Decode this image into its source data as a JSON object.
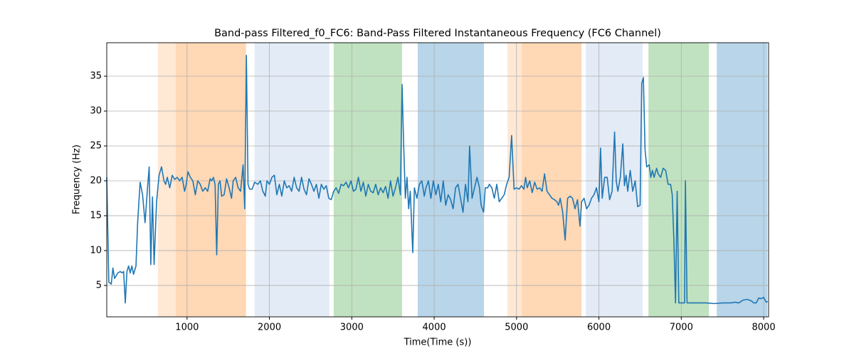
{
  "chart_data": {
    "type": "line",
    "title": "Band-pass Filtered_f0_FC6: Band-Pass Filtered Instantaneous Frequency (FC6 Channel)",
    "xlabel": "Time(Time (s))",
    "ylabel": "Frequency (Hz)",
    "color": "#1f77b4",
    "x": [
      25,
      50,
      80,
      100,
      120,
      160,
      190,
      210,
      230,
      250,
      270,
      290,
      310,
      330,
      350,
      380,
      400,
      430,
      460,
      490,
      520,
      540,
      560,
      580,
      600,
      630,
      660,
      690,
      720,
      740,
      760,
      790,
      820,
      850,
      880,
      910,
      940,
      970,
      990,
      1010,
      1040,
      1070,
      1100,
      1130,
      1160,
      1190,
      1220,
      1250,
      1280,
      1300,
      1320,
      1340,
      1360,
      1380,
      1400,
      1420,
      1450,
      1480,
      1510,
      1540,
      1560,
      1590,
      1620,
      1650,
      1680,
      1700,
      1720,
      1740,
      1760,
      1790,
      1820,
      1860,
      1890,
      1920,
      1950,
      1970,
      2000,
      2030,
      2060,
      2090,
      2120,
      2150,
      2180,
      2210,
      2240,
      2270,
      2300,
      2330,
      2360,
      2390,
      2420,
      2450,
      2480,
      2510,
      2540,
      2570,
      2600,
      2630,
      2660,
      2690,
      2720,
      2750,
      2780,
      2810,
      2840,
      2870,
      2900,
      2930,
      2960,
      2990,
      3020,
      3050,
      3080,
      3110,
      3140,
      3170,
      3200,
      3230,
      3260,
      3290,
      3320,
      3350,
      3380,
      3410,
      3440,
      3470,
      3500,
      3530,
      3560,
      3590,
      3610,
      3630,
      3650,
      3670,
      3690,
      3710,
      3740,
      3760,
      3790,
      3820,
      3850,
      3880,
      3900,
      3930,
      3960,
      3990,
      4020,
      4050,
      4080,
      4110,
      4140,
      4170,
      4200,
      4230,
      4260,
      4290,
      4320,
      4350,
      4380,
      4410,
      4430,
      4460,
      4490,
      4520,
      4550,
      4570,
      4600,
      4620,
      4650,
      4670,
      4700,
      4730,
      4760,
      4790,
      4820,
      4850,
      4880,
      4910,
      4940,
      4970,
      5000,
      5030,
      5060,
      5090,
      5110,
      5130,
      5160,
      5190,
      5220,
      5250,
      5280,
      5310,
      5340,
      5370,
      5400,
      5430,
      5460,
      5490,
      5510,
      5530,
      5560,
      5590,
      5620,
      5650,
      5680,
      5710,
      5740,
      5770,
      5790,
      5820,
      5850,
      5880,
      5910,
      5940,
      5970,
      6000,
      6020,
      6040,
      6070,
      6100,
      6130,
      6160,
      6190,
      6210,
      6230,
      6260,
      6290,
      6310,
      6330,
      6350,
      6380,
      6410,
      6440,
      6470,
      6500,
      6520,
      6540,
      6560,
      6580,
      6610,
      6630,
      6650,
      6670,
      6700,
      6720,
      6750,
      6780,
      6810,
      6840,
      6870,
      6890,
      6910,
      6930,
      6950,
      6970,
      7000,
      7040,
      7050,
      7070,
      7200,
      7300,
      7400,
      7500,
      7600,
      7650,
      7700,
      7750,
      7800,
      7850,
      7880,
      7910,
      7940,
      7970,
      8000,
      8030,
      8050
    ],
    "values": [
      20.5,
      5.5,
      5.2,
      7.5,
      6,
      6.8,
      7,
      6.8,
      7,
      2.5,
      7,
      7.8,
      6.8,
      7.8,
      6.6,
      7.8,
      14,
      19.8,
      18,
      14,
      19,
      22,
      8,
      17.7,
      8,
      17,
      20.8,
      22,
      20,
      19.5,
      20.5,
      19,
      20.8,
      20.2,
      20.5,
      20,
      20.5,
      18.5,
      19.5,
      21.3,
      20.5,
      20,
      18,
      20,
      19.5,
      18.5,
      19,
      18.5,
      20.3,
      20,
      20.5,
      19.5,
      9.4,
      19.5,
      20,
      17.8,
      18,
      20.3,
      19,
      17.5,
      20,
      20.5,
      19,
      18.5,
      22.3,
      16,
      38,
      19.5,
      18.8,
      18.8,
      19.8,
      19.5,
      20,
      18.5,
      17.8,
      20,
      19.5,
      20.5,
      20.8,
      18,
      19.5,
      17.8,
      20,
      19,
      19.3,
      18.5,
      20.5,
      19,
      18.5,
      20.5,
      18.8,
      18,
      20.3,
      19.5,
      18.5,
      19.5,
      17.5,
      19.5,
      18.8,
      19.3,
      17.5,
      17.3,
      18.5,
      19,
      18.2,
      19.5,
      19.3,
      19.8,
      19,
      20,
      18.5,
      18.8,
      20.5,
      18.5,
      19.8,
      17.8,
      19.5,
      18.5,
      18.3,
      19.5,
      18,
      19,
      18.3,
      19.2,
      17.5,
      20,
      17.8,
      19,
      20.5,
      18,
      33.8,
      25,
      17.5,
      20.5,
      16,
      18.5,
      9.7,
      19,
      17.5,
      19.5,
      20,
      17.8,
      19,
      20,
      17.5,
      20,
      18,
      19.5,
      17,
      20,
      16.5,
      18,
      17.3,
      16,
      19,
      19.5,
      17.5,
      15.5,
      19.5,
      17,
      25,
      17.5,
      19,
      20.5,
      19,
      16.5,
      15.5,
      19,
      19,
      19.5,
      19,
      17.5,
      19.5,
      17,
      17.5,
      18,
      19.5,
      20.5,
      26.5,
      18.8,
      19,
      18.8,
      19.3,
      18.8,
      20.5,
      19,
      20,
      18.3,
      19.8,
      18.8,
      19,
      18.5,
      21,
      18.5,
      18,
      17.5,
      17.3,
      17,
      16.5,
      17.5,
      15.5,
      11.5,
      17.5,
      17.8,
      17.5,
      16,
      17.3,
      13.5,
      17,
      17.5,
      16,
      16.5,
      17.5,
      18,
      19,
      17,
      24.7,
      17.5,
      20.5,
      20.5,
      17.3,
      18.5,
      27,
      20,
      18.5,
      20.5,
      25.3,
      19.3,
      20.8,
      18.5,
      21.5,
      18.5,
      20,
      16.3,
      16.5,
      34,
      34.8,
      24.5,
      22,
      22.3,
      20.5,
      21.5,
      20.5,
      21.8,
      21,
      20.5,
      21.8,
      21.5,
      19.5,
      19.5,
      18,
      11.5,
      2.5,
      18.5,
      2.5,
      2.5,
      2.5,
      20,
      2.5,
      2.5,
      2.5,
      2.4,
      2.5,
      2.5,
      2.6,
      2.5,
      2.9,
      3,
      2.8,
      2.5,
      2.5,
      3.2,
      3.1,
      3.3,
      2.6,
      2.7
    ],
    "spans": [
      {
        "start": 645,
        "end": 862,
        "color": "#ffe8d4"
      },
      {
        "start": 862,
        "end": 1716,
        "color": "#ffd8b5"
      },
      {
        "start": 1820,
        "end": 2728,
        "color": "#e3ebf6"
      },
      {
        "start": 2780,
        "end": 3610,
        "color": "#c0e2c0"
      },
      {
        "start": 3800,
        "end": 4604,
        "color": "#b8d5e9"
      },
      {
        "start": 4890,
        "end": 5063,
        "color": "#ffe8d4"
      },
      {
        "start": 5063,
        "end": 5789,
        "color": "#ffd8b5"
      },
      {
        "start": 5841,
        "end": 6532,
        "color": "#e3ebf6"
      },
      {
        "start": 6601,
        "end": 7336,
        "color": "#c0e2c0"
      },
      {
        "start": 7431,
        "end": 8045,
        "color": "#b8d5e9"
      }
    ],
    "xlim": [
      25,
      8060
    ],
    "ylim": [
      0.5,
      39.8
    ],
    "xticks": [
      1000,
      2000,
      3000,
      4000,
      5000,
      6000,
      7000,
      8000
    ],
    "yticks": [
      5,
      10,
      15,
      20,
      25,
      30,
      35
    ],
    "grid": true
  }
}
